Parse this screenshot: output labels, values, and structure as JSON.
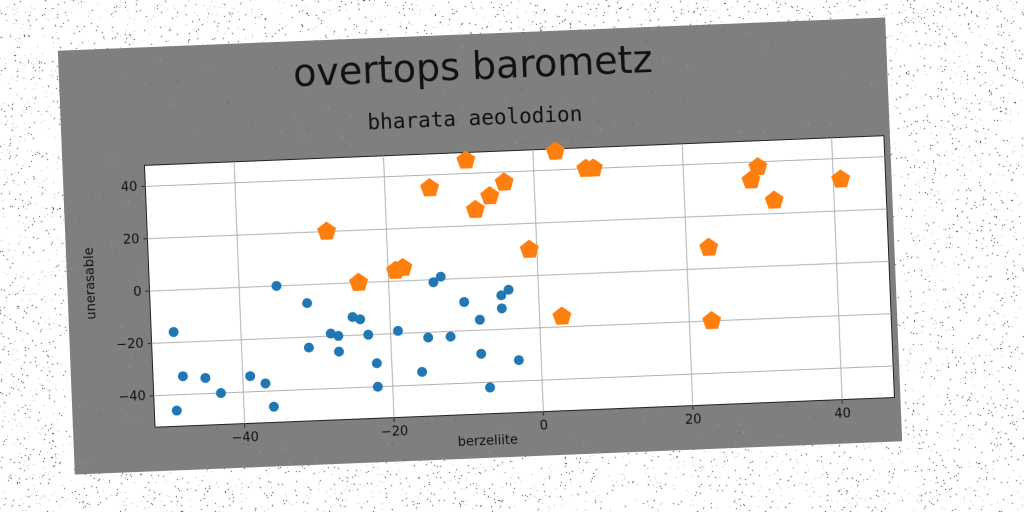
{
  "chart_data": {
    "type": "scatter",
    "title": "overtops barometz",
    "subtitle": "bharata aeolodion",
    "xlabel": "berzeliite",
    "ylabel": "unerasable",
    "xlim": [
      -52,
      47
    ],
    "ylim": [
      -52,
      48
    ],
    "x_ticks": [
      -40,
      -20,
      0,
      20,
      40
    ],
    "y_ticks": [
      -40,
      -20,
      0,
      20,
      40
    ],
    "x_tick_labels": [
      "−40",
      "−20",
      "0",
      "20",
      "40"
    ],
    "y_tick_labels": [
      "−40",
      "−20",
      "0",
      "20",
      "40"
    ],
    "grid": true,
    "legend": "none",
    "series": [
      {
        "marker": "circle",
        "color": "#1f77b4",
        "points": [
          [
            -49,
            -16
          ],
          [
            -48,
            -33
          ],
          [
            -45,
            -34
          ],
          [
            -43,
            -40
          ],
          [
            -49,
            -46
          ],
          [
            -39,
            -34
          ],
          [
            -37,
            -37
          ],
          [
            -36,
            -46
          ],
          [
            -35,
            0
          ],
          [
            -31,
            -7
          ],
          [
            -31,
            -24
          ],
          [
            -28,
            -19
          ],
          [
            -27,
            -20
          ],
          [
            -27,
            -26
          ],
          [
            -25,
            -13
          ],
          [
            -24,
            -14
          ],
          [
            -23,
            -20
          ],
          [
            -22,
            -31
          ],
          [
            -22,
            -40
          ],
          [
            -19,
            -19
          ],
          [
            -16,
            -35
          ],
          [
            -15,
            -22
          ],
          [
            -14,
            -1
          ],
          [
            -13,
            1
          ],
          [
            -12,
            -22
          ],
          [
            -10,
            -9
          ],
          [
            -8,
            -16
          ],
          [
            -8,
            -29
          ],
          [
            -7,
            -42
          ],
          [
            -5,
            -7
          ],
          [
            -5,
            -12
          ],
          [
            -4,
            -5
          ],
          [
            -3,
            -32
          ]
        ]
      },
      {
        "marker": "pentagon",
        "color": "#ff7f0e",
        "points": [
          [
            -28,
            20
          ],
          [
            -24,
            0
          ],
          [
            -19,
            4
          ],
          [
            -18,
            5
          ],
          [
            -14,
            35
          ],
          [
            -9,
            45
          ],
          [
            -8,
            26
          ],
          [
            -6,
            31
          ],
          [
            -4,
            36
          ],
          [
            -1,
            10
          ],
          [
            3,
            47
          ],
          [
            3,
            -16
          ],
          [
            7,
            40
          ],
          [
            8,
            40
          ],
          [
            23,
            8
          ],
          [
            23,
            -20
          ],
          [
            29,
            33
          ],
          [
            30,
            38
          ],
          [
            32,
            25
          ],
          [
            41,
            32
          ]
        ]
      }
    ]
  }
}
